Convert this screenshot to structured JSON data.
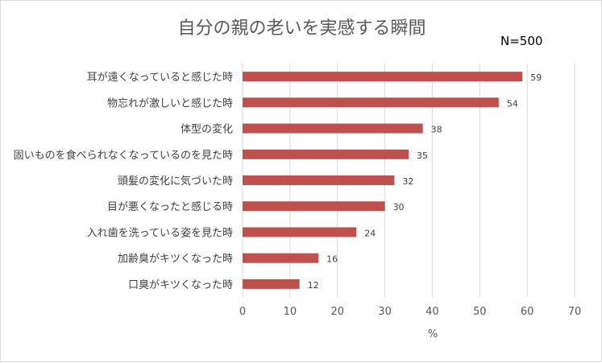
{
  "chart_data": {
    "type": "bar",
    "orientation": "horizontal",
    "title": "自分の親の老いを実感する瞬間",
    "sample_size": "N=500",
    "categories": [
      "耳が遠くなっていると感じた時",
      "物忘れが激しいと感じた時",
      "体型の変化",
      "固いものを食べられなくなっているのを見た時",
      "頭髪の変化に気づいた時",
      "目が悪くなったと感じる時",
      "入れ歯を洗っている姿を見た時",
      "加齢臭がキツくなった時",
      "口臭がキツくなった時"
    ],
    "values": [
      59,
      54,
      38,
      35,
      32,
      30,
      24,
      16,
      12
    ],
    "xlabel": "%",
    "ylabel": "",
    "xlim": [
      0,
      70
    ],
    "xticks": [
      0,
      10,
      20,
      30,
      40,
      50,
      60,
      70
    ],
    "grid": true,
    "bar_color": "#c0504d",
    "grid_color": "#d9d9d9"
  }
}
